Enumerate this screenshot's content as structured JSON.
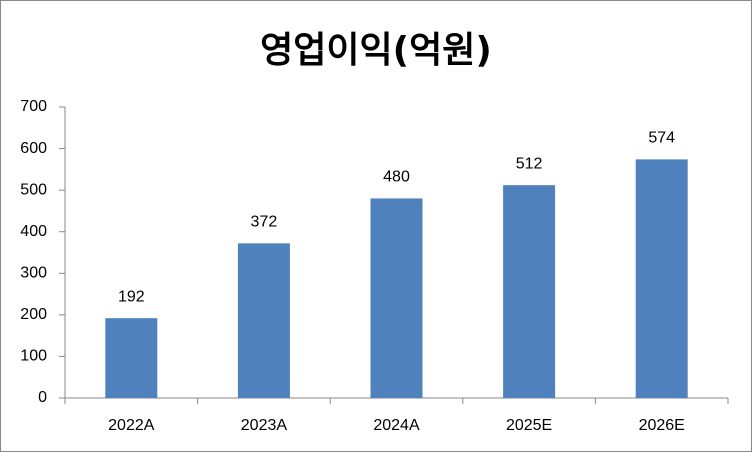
{
  "chart_data": {
    "type": "bar",
    "title": "영업이익(억원)",
    "categories": [
      "2022A",
      "2023A",
      "2024A",
      "2025E",
      "2026E"
    ],
    "values": [
      192,
      372,
      480,
      512,
      574
    ],
    "color": "#4f81bd",
    "ylim": [
      0,
      700
    ],
    "yticks": [
      0,
      100,
      200,
      300,
      400,
      500,
      600,
      700
    ],
    "grid": false
  }
}
